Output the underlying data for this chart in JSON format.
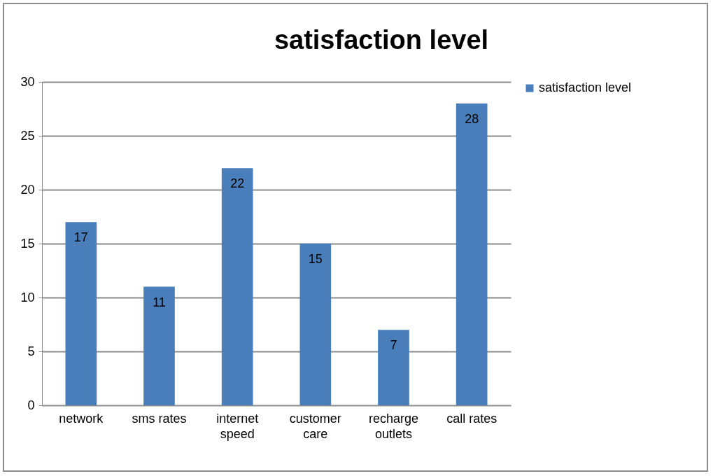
{
  "chart_data": {
    "type": "bar",
    "title": "satisfaction level",
    "categories": [
      "network",
      "sms rates",
      "internet speed",
      "customer care",
      "recharge outlets",
      "call rates"
    ],
    "series": [
      {
        "name": "satisfaction level",
        "color": "#4a7ebb",
        "values": [
          17,
          11,
          22,
          15,
          7,
          28
        ]
      }
    ],
    "ylim": [
      0,
      30
    ],
    "yticks": [
      0,
      5,
      10,
      15,
      20,
      25,
      30
    ],
    "grid": "y",
    "legend": "right",
    "data_labels": true
  }
}
